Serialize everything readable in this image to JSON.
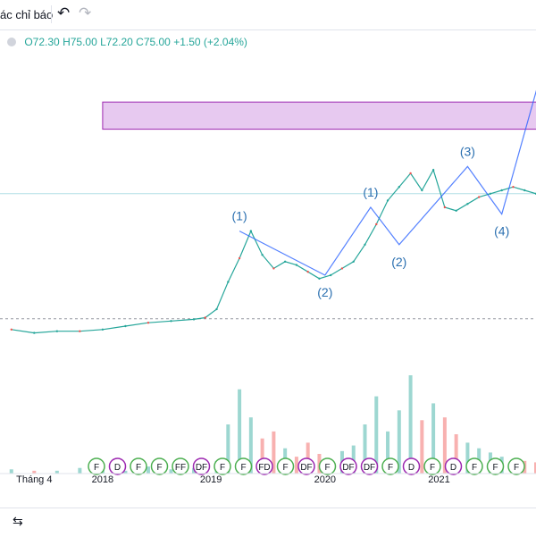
{
  "toolbar": {
    "label": "ác chỉ báo",
    "undo_icon": "undo-icon",
    "redo_icon": "redo-icon"
  },
  "legend": {
    "open": "O72.30",
    "high": "H75.00",
    "low": "L72.20",
    "close": "C75.00",
    "change": "+1.50 (+2.04%)"
  },
  "colors": {
    "up": "#26a69a",
    "down": "#ef5350",
    "wave": "#2962ff",
    "label": "#2a6fb0",
    "zone": "#e7c9f0",
    "zone_border": "#9c27b0"
  },
  "chart_data": {
    "type": "line",
    "xlabel": "",
    "ylabel": "",
    "x_ticks": [
      "Tháng 4",
      "2018",
      "2019",
      "2020",
      "2021"
    ],
    "x_range": [
      2017.2,
      2021.9
    ],
    "y_range": [
      0,
      100
    ],
    "price_series": {
      "x": [
        2017.3,
        2017.5,
        2017.7,
        2017.9,
        2018.1,
        2018.3,
        2018.5,
        2018.7,
        2018.9,
        2019.0,
        2019.1,
        2019.2,
        2019.3,
        2019.4,
        2019.5,
        2019.6,
        2019.7,
        2019.8,
        2019.9,
        2020.0,
        2020.1,
        2020.2,
        2020.3,
        2020.4,
        2020.5,
        2020.6,
        2020.7,
        2020.8,
        2020.9,
        2021.0,
        2021.1,
        2021.2,
        2021.3,
        2021.4,
        2021.5,
        2021.6,
        2021.7,
        2021.8,
        2021.9
      ],
      "y": [
        24,
        23,
        23.5,
        23.5,
        24,
        25,
        26,
        26.5,
        27,
        27.5,
        30,
        38,
        45,
        53,
        46,
        42,
        44,
        43,
        41,
        39,
        40,
        42,
        44,
        49,
        55,
        62,
        66,
        70,
        65,
        71,
        60,
        59,
        61,
        63,
        64,
        65,
        66,
        65,
        64
      ]
    },
    "wave_points": [
      {
        "label": "(1)",
        "x": 2019.3,
        "y": 53
      },
      {
        "label": "(2)",
        "x": 2020.05,
        "y": 40
      },
      {
        "label": "(1)",
        "x": 2020.45,
        "y": 60
      },
      {
        "label": "(2)",
        "x": 2020.7,
        "y": 49
      },
      {
        "label": "(3)",
        "x": 2021.3,
        "y": 72
      },
      {
        "label": "(4)",
        "x": 2021.6,
        "y": 58
      },
      {
        "label": "",
        "x": 2021.95,
        "y": 100
      }
    ],
    "zone": {
      "x_from": 2018.1,
      "x_to": 2021.95,
      "y_from": 83,
      "y_to": 91
    },
    "volume": [
      3,
      2,
      2,
      4,
      3,
      2,
      5,
      3,
      4,
      6,
      9,
      35,
      60,
      40,
      25,
      30,
      18,
      12,
      22,
      14,
      10,
      16,
      20,
      35,
      55,
      30,
      45,
      70,
      38,
      50,
      40,
      28,
      22,
      18,
      15,
      12,
      10,
      9,
      8
    ],
    "events": [
      "F",
      "D",
      "F",
      "F",
      "FF",
      "DF",
      "F",
      "F",
      "FD",
      "F",
      "DF",
      "F",
      "DF",
      "DF",
      "F",
      "D",
      "F",
      "D",
      "F",
      "F",
      "F"
    ],
    "grid": false
  }
}
